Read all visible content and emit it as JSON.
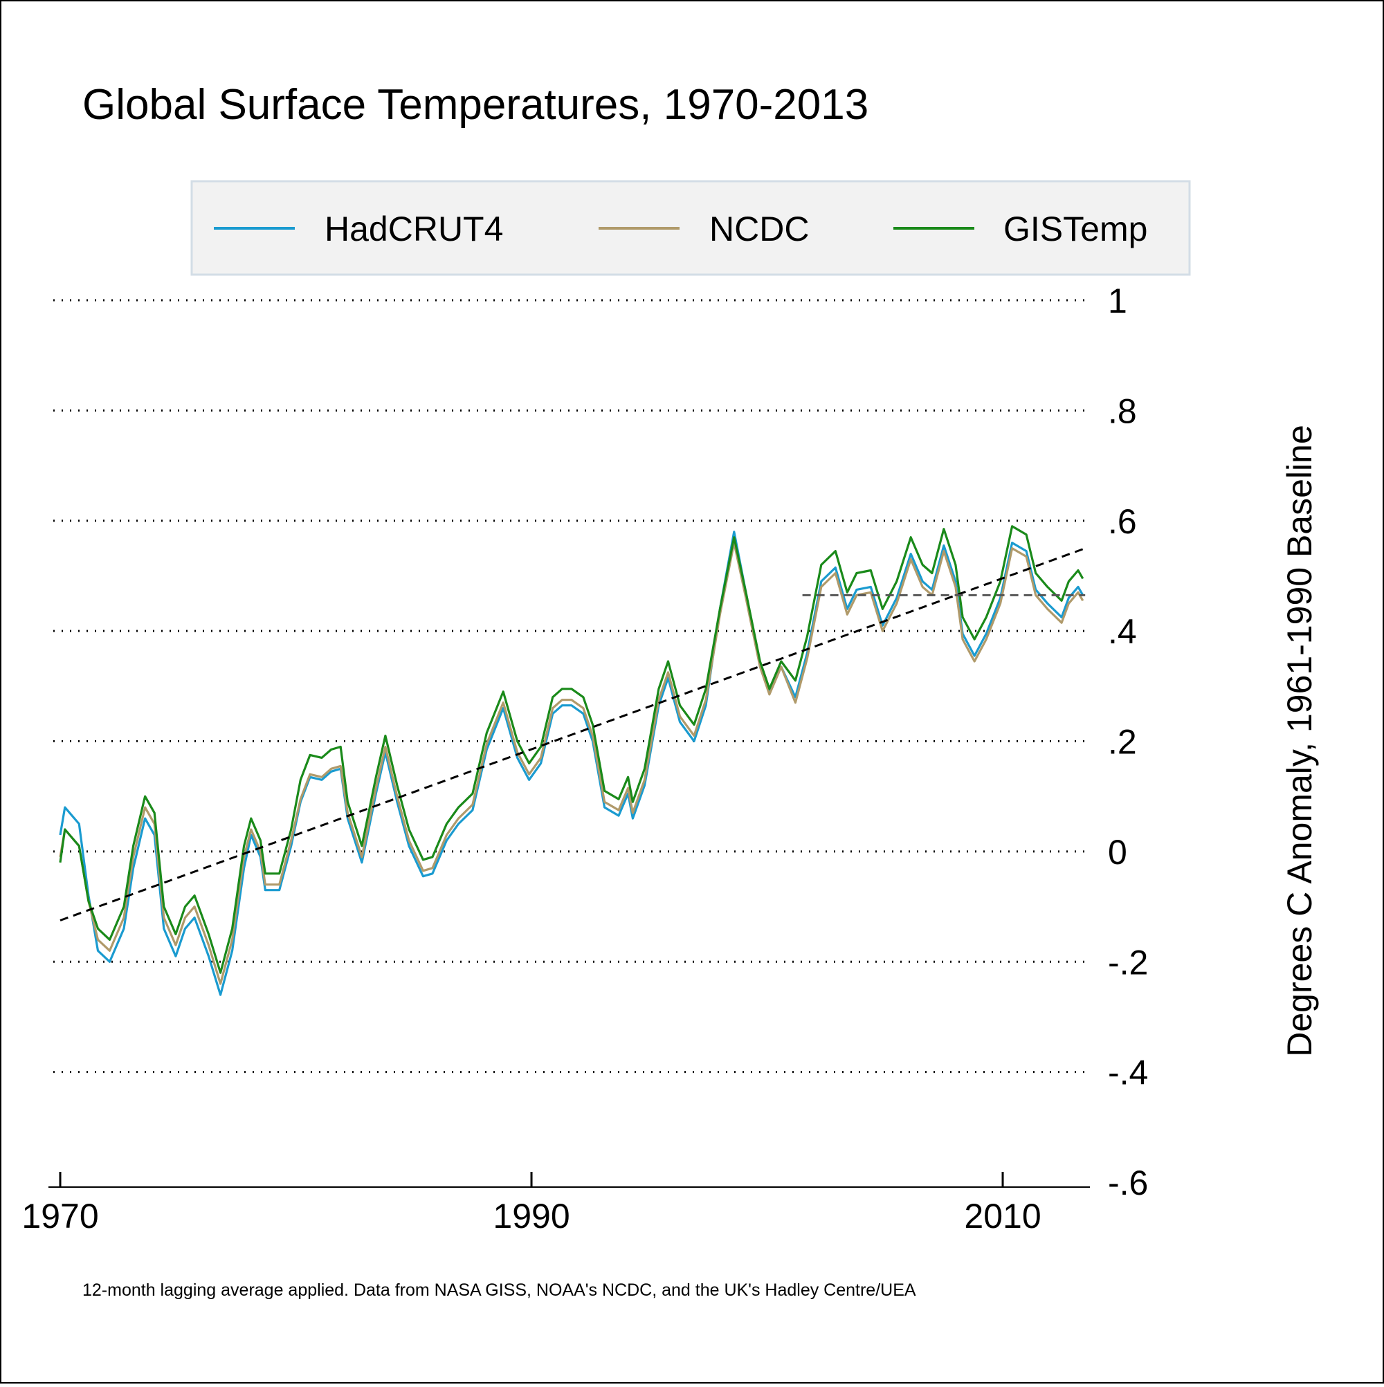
{
  "chart_data": {
    "type": "line",
    "title": "Global Surface Temperatures, 1970-2013",
    "y_label": "Degrees C Anomaly, 1961-1990 Baseline",
    "note": "12-month lagging average applied. Data from NASA GISS, NOAA's NCDC, and the UK's Hadley Centre/UEA",
    "x": [
      1970.0,
      1970.2,
      1970.8,
      1971.2,
      1971.6,
      1972.1,
      1972.7,
      1973.1,
      1973.6,
      1974.0,
      1974.4,
      1974.9,
      1975.3,
      1975.7,
      1976.3,
      1976.8,
      1977.3,
      1977.8,
      1978.1,
      1978.5,
      1978.7,
      1979.3,
      1979.8,
      1980.2,
      1980.6,
      1981.1,
      1981.5,
      1981.9,
      1982.2,
      1982.8,
      1983.4,
      1983.8,
      1984.3,
      1984.8,
      1985.4,
      1985.8,
      1986.4,
      1986.9,
      1987.5,
      1988.1,
      1988.8,
      1989.4,
      1989.9,
      1990.4,
      1990.9,
      1991.3,
      1991.7,
      1992.2,
      1992.6,
      1993.1,
      1993.7,
      1994.1,
      1994.3,
      1994.8,
      1995.4,
      1995.8,
      1996.3,
      1996.9,
      1997.4,
      1998.0,
      1998.6,
      1999.1,
      1999.7,
      2000.1,
      2000.6,
      2001.2,
      2001.7,
      2002.3,
      2002.9,
      2003.4,
      2003.8,
      2004.4,
      2004.9,
      2005.5,
      2006.1,
      2006.6,
      2007.0,
      2007.5,
      2008.0,
      2008.3,
      2008.8,
      2009.3,
      2009.9,
      2010.4,
      2011.0,
      2011.4,
      2011.9,
      2012.5,
      2012.8,
      2013.2,
      2013.4
    ],
    "series": [
      {
        "name": "HadCRUT4",
        "color": "#1a9bd0",
        "values": [
          0.03,
          0.08,
          0.05,
          -0.08,
          -0.18,
          -0.2,
          -0.14,
          -0.03,
          0.06,
          0.03,
          -0.14,
          -0.19,
          -0.14,
          -0.12,
          -0.19,
          -0.26,
          -0.18,
          -0.03,
          0.03,
          -0.01,
          -0.07,
          -0.07,
          0.01,
          0.09,
          0.135,
          0.13,
          0.145,
          0.15,
          0.06,
          -0.02,
          0.105,
          0.18,
          0.09,
          0.01,
          -0.045,
          -0.04,
          0.02,
          0.05,
          0.075,
          0.185,
          0.26,
          0.17,
          0.13,
          0.16,
          0.25,
          0.265,
          0.265,
          0.25,
          0.2,
          0.08,
          0.065,
          0.105,
          0.06,
          0.12,
          0.265,
          0.315,
          0.235,
          0.2,
          0.265,
          0.44,
          0.58,
          0.47,
          0.34,
          0.29,
          0.335,
          0.28,
          0.36,
          0.49,
          0.515,
          0.44,
          0.475,
          0.48,
          0.41,
          0.46,
          0.54,
          0.49,
          0.475,
          0.555,
          0.49,
          0.395,
          0.355,
          0.395,
          0.46,
          0.56,
          0.545,
          0.475,
          0.45,
          0.425,
          0.46,
          0.48,
          0.465
        ]
      },
      {
        "name": "NCDC",
        "color": "#b09a6a",
        "values": [
          -0.01,
          0.04,
          0.01,
          -0.09,
          -0.16,
          -0.18,
          -0.12,
          -0.01,
          0.08,
          0.05,
          -0.12,
          -0.17,
          -0.12,
          -0.1,
          -0.17,
          -0.24,
          -0.16,
          -0.01,
          0.04,
          0,
          -0.06,
          -0.06,
          0.02,
          0.095,
          0.14,
          0.135,
          0.15,
          0.155,
          0.07,
          -0.01,
          0.115,
          0.19,
          0.1,
          0.02,
          -0.035,
          -0.03,
          0.03,
          0.06,
          0.085,
          0.195,
          0.27,
          0.18,
          0.14,
          0.17,
          0.26,
          0.275,
          0.275,
          0.26,
          0.21,
          0.09,
          0.075,
          0.115,
          0.07,
          0.13,
          0.275,
          0.325,
          0.245,
          0.21,
          0.275,
          0.43,
          0.56,
          0.46,
          0.335,
          0.285,
          0.335,
          0.27,
          0.35,
          0.48,
          0.505,
          0.43,
          0.465,
          0.47,
          0.4,
          0.45,
          0.53,
          0.48,
          0.465,
          0.545,
          0.48,
          0.385,
          0.345,
          0.385,
          0.45,
          0.55,
          0.535,
          0.465,
          0.44,
          0.415,
          0.45,
          0.47,
          0.455
        ]
      },
      {
        "name": "GISTemp",
        "color": "#1a8a1a",
        "values": [
          -0.02,
          0.04,
          0.01,
          -0.09,
          -0.14,
          -0.16,
          -0.1,
          0.01,
          0.1,
          0.07,
          -0.1,
          -0.15,
          -0.1,
          -0.08,
          -0.15,
          -0.22,
          -0.14,
          0.01,
          0.06,
          0.02,
          -0.04,
          -0.04,
          0.04,
          0.13,
          0.175,
          0.17,
          0.185,
          0.19,
          0.09,
          0.01,
          0.135,
          0.21,
          0.12,
          0.04,
          -0.015,
          -0.01,
          0.05,
          0.08,
          0.105,
          0.215,
          0.29,
          0.2,
          0.16,
          0.19,
          0.28,
          0.295,
          0.295,
          0.28,
          0.23,
          0.11,
          0.095,
          0.135,
          0.09,
          0.15,
          0.295,
          0.345,
          0.265,
          0.23,
          0.295,
          0.44,
          0.57,
          0.47,
          0.345,
          0.295,
          0.345,
          0.31,
          0.39,
          0.52,
          0.545,
          0.47,
          0.505,
          0.51,
          0.44,
          0.49,
          0.57,
          0.52,
          0.505,
          0.585,
          0.52,
          0.425,
          0.385,
          0.425,
          0.49,
          0.59,
          0.575,
          0.505,
          0.48,
          0.455,
          0.49,
          0.51,
          0.495
        ]
      }
    ],
    "reference_lines": [
      {
        "x": [
          1970.0,
          2013.5
        ],
        "y": [
          -0.125,
          0.55
        ],
        "color": "#000000",
        "dashed": true
      },
      {
        "x": [
          2001.5,
          2013.5
        ],
        "y": [
          0.465,
          0.465
        ],
        "color": "#555555",
        "dashed": true
      }
    ],
    "xlim": [
      1969.5,
      2013.7
    ],
    "xticks": [
      1970,
      1990,
      2010
    ],
    "ylim": [
      -0.6,
      1
    ],
    "yticks": [
      {
        "value": -0.6,
        "label": "-.6"
      },
      {
        "value": -0.4,
        "label": "-.4"
      },
      {
        "value": -0.2,
        "label": "-.2"
      },
      0,
      {
        "value": 0.2,
        "label": ".2"
      },
      {
        "value": 0.4,
        "label": ".4"
      },
      {
        "value": 0.6,
        "label": ".6"
      },
      {
        "value": 0.8,
        "label": ".8"
      },
      1
    ],
    "grid": true,
    "legend": "top"
  }
}
